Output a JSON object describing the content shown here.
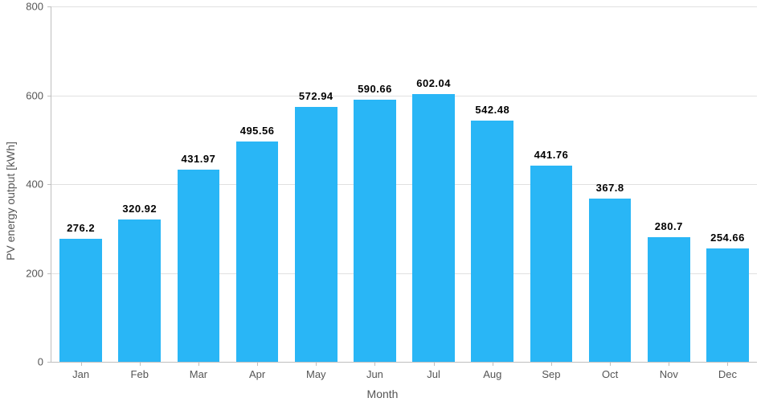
{
  "chart": {
    "type": "bar",
    "ylabel": "PV energy output [kWh]",
    "xlabel": "Month",
    "categories": [
      "Jan",
      "Feb",
      "Mar",
      "Apr",
      "May",
      "Jun",
      "Jul",
      "Aug",
      "Sep",
      "Oct",
      "Nov",
      "Dec"
    ],
    "values": [
      276.2,
      320.92,
      431.97,
      495.56,
      572.94,
      590.66,
      602.04,
      542.48,
      441.76,
      367.8,
      280.7,
      254.66
    ],
    "value_labels": [
      "276.2",
      "320.92",
      "431.97",
      "495.56",
      "572.94",
      "590.66",
      "602.04",
      "542.48",
      "441.76",
      "367.8",
      "280.7",
      "254.66"
    ],
    "bar_color": "#29b6f6",
    "ylim": [
      0,
      800
    ],
    "ytick_step": 200,
    "yticks": [
      0,
      200,
      400,
      600,
      800
    ],
    "background_color": "#ffffff",
    "grid_color": "#e0e0e0",
    "axis_color": "#bfbfbf",
    "text_color": "#555555",
    "label_fontsize": 14,
    "tick_fontsize": 13,
    "value_label_fontsize": 13,
    "value_label_fontweight": 700,
    "bar_width": 0.72
  }
}
